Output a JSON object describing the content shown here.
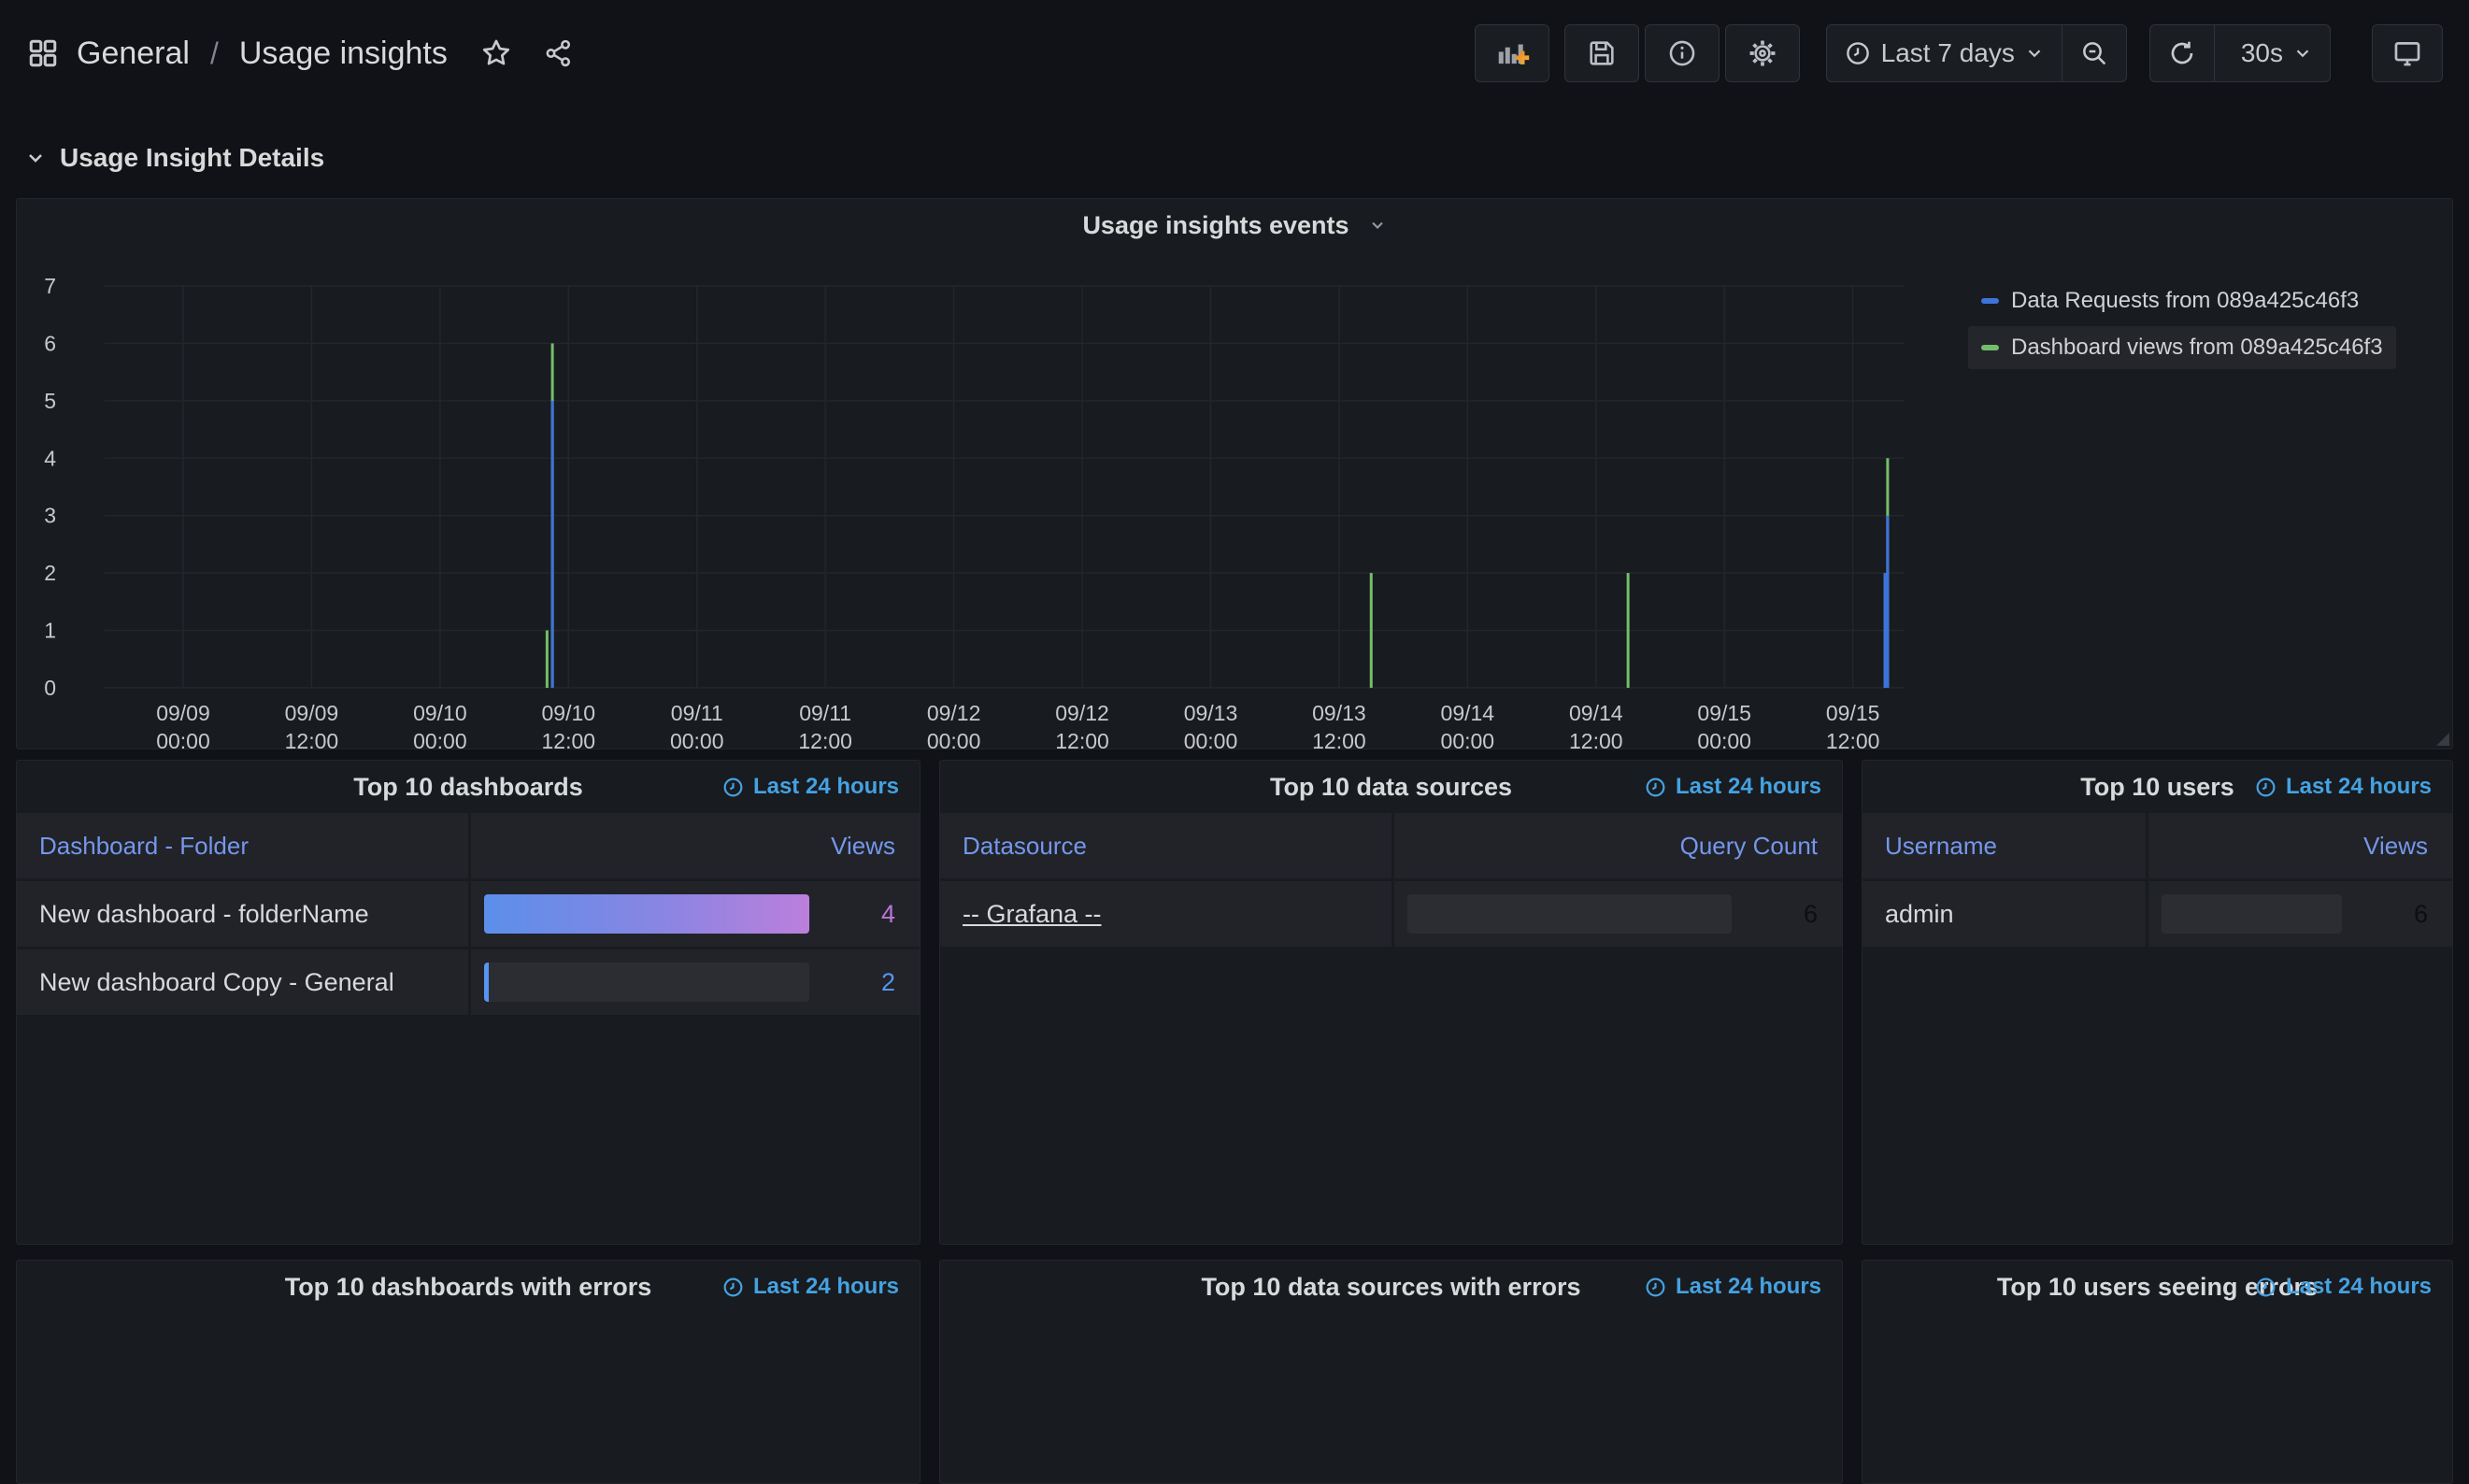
{
  "breadcrumb": {
    "folder": "General",
    "separator": "/",
    "page": "Usage insights"
  },
  "toolbar": {
    "add_panel": "add-panel",
    "save": "save-dashboard",
    "insights": "dashboard-insights",
    "settings": "dashboard-settings",
    "time_range": "Last 7 days",
    "refresh_interval": "30s",
    "kiosk": "cycle-view-mode"
  },
  "row_header": {
    "title": "Usage Insight Details"
  },
  "chart_data": {
    "type": "bar",
    "title": "Usage insights events",
    "ylim": [
      0,
      7
    ],
    "y_ticks": [
      0,
      1,
      2,
      3,
      4,
      5,
      6,
      7
    ],
    "x_start": "09/08 16:40",
    "x_end": "09/15 16:50",
    "x_ticks": [
      "09/09 00:00",
      "09/09 12:00",
      "09/10 00:00",
      "09/10 12:00",
      "09/11 00:00",
      "09/11 12:00",
      "09/12 00:00",
      "09/12 12:00",
      "09/13 00:00",
      "09/13 12:00",
      "09/14 00:00",
      "09/14 12:00",
      "09/15 00:00",
      "09/15 12:00"
    ],
    "grid": true,
    "legend_position": "right",
    "legend_highlighted": "Dashboard views from 089a425c46f3",
    "series": [
      {
        "name": "Data Requests from 089a425c46f3",
        "color": "#3D73DB",
        "points": [
          {
            "time": "09/10 10:30",
            "value": 5
          },
          {
            "time": "09/15 15:00",
            "value": 2
          },
          {
            "time": "09/15 15:15",
            "value": 3
          }
        ]
      },
      {
        "name": "Dashboard views from 089a425c46f3",
        "color": "#73BF69",
        "points": [
          {
            "time": "09/10 10:00",
            "value": 1
          },
          {
            "time": "09/10 10:30",
            "value": 6
          },
          {
            "time": "09/13 15:00",
            "value": 2
          },
          {
            "time": "09/14 15:00",
            "value": 2
          },
          {
            "time": "09/15 15:15",
            "value": 4
          }
        ]
      }
    ]
  },
  "tables": [
    {
      "title": "Top 10 dashboards",
      "time_link": "Last 24 hours",
      "columns": [
        "Dashboard - Folder",
        "Views"
      ],
      "rows": [
        {
          "label": "New dashboard - folderName",
          "link": false,
          "value": 4,
          "value_color": "#B877D9",
          "bar": "gradient"
        },
        {
          "label": "New dashboard Copy - General",
          "link": false,
          "value": 2,
          "value_color": "#5794F2",
          "bar": "min-marker"
        }
      ]
    },
    {
      "title": "Top 10 data sources",
      "time_link": "Last 24 hours",
      "columns": [
        "Datasource",
        "Query Count"
      ],
      "rows": [
        {
          "label": "-- Grafana --",
          "link": true,
          "value": 6,
          "value_color": "#0D0E11",
          "bar": "empty"
        }
      ]
    },
    {
      "title": "Top 10 users",
      "time_link": "Last 24 hours",
      "columns": [
        "Username",
        "Views"
      ],
      "rows": [
        {
          "label": "admin",
          "link": false,
          "value": 6,
          "value_color": "#0D0E11",
          "bar": "empty"
        }
      ]
    }
  ],
  "error_panels": [
    {
      "title": "Top 10 dashboards with errors",
      "time_link": "Last 24 hours"
    },
    {
      "title": "Top 10 data sources with errors",
      "time_link": "Last 24 hours"
    },
    {
      "title": "Top 10 users seeing errors",
      "time_link": "Last 24 hours"
    }
  ],
  "colors": {
    "gauge_gradient_start": "#5B8FEA",
    "gauge_gradient_end": "#BC7FDC",
    "gauge_empty": "#2B2D33",
    "link_blue": "#45A2E2",
    "column_header_blue": "#7597EA",
    "series_blue": "#3D73DB",
    "series_green": "#73BF69"
  }
}
